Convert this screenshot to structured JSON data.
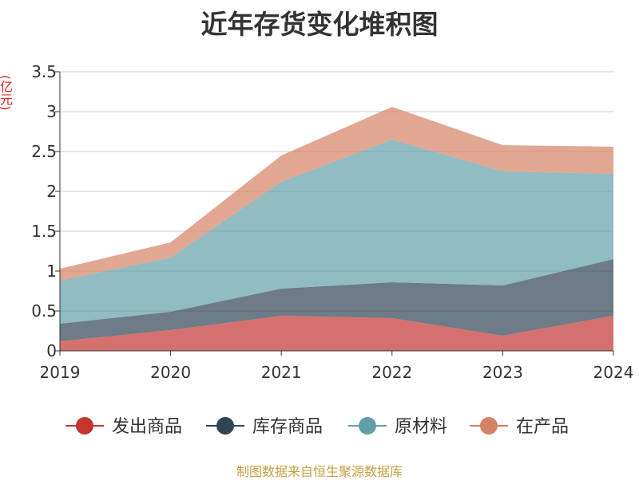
{
  "title": "近年存货变化堆积图",
  "unit_label": "(亿元)",
  "source": "制图数据来自恒生聚源数据库",
  "chart_data": {
    "type": "area",
    "stacked": true,
    "categories": [
      "2019",
      "2020",
      "2021",
      "2022",
      "2023",
      "2024"
    ],
    "ylim": [
      0,
      3.5
    ],
    "yticks": [
      "0",
      "0.5",
      "1",
      "1.5",
      "2",
      "2.5",
      "3",
      "3.5"
    ],
    "grid": true,
    "legend_position": "bottom",
    "series": [
      {
        "name": "发出商品",
        "color": "#c23531",
        "values": [
          0.12,
          0.26,
          0.44,
          0.41,
          0.19,
          0.44
        ]
      },
      {
        "name": "库存商品",
        "color": "#2f4554",
        "values": [
          0.22,
          0.23,
          0.34,
          0.45,
          0.63,
          0.71
        ]
      },
      {
        "name": "原材料",
        "color": "#61a0a8",
        "values": [
          0.54,
          0.68,
          1.34,
          1.79,
          1.43,
          1.07
        ]
      },
      {
        "name": "在产品",
        "color": "#d48265",
        "values": [
          0.15,
          0.19,
          0.33,
          0.41,
          0.33,
          0.34
        ]
      }
    ]
  }
}
